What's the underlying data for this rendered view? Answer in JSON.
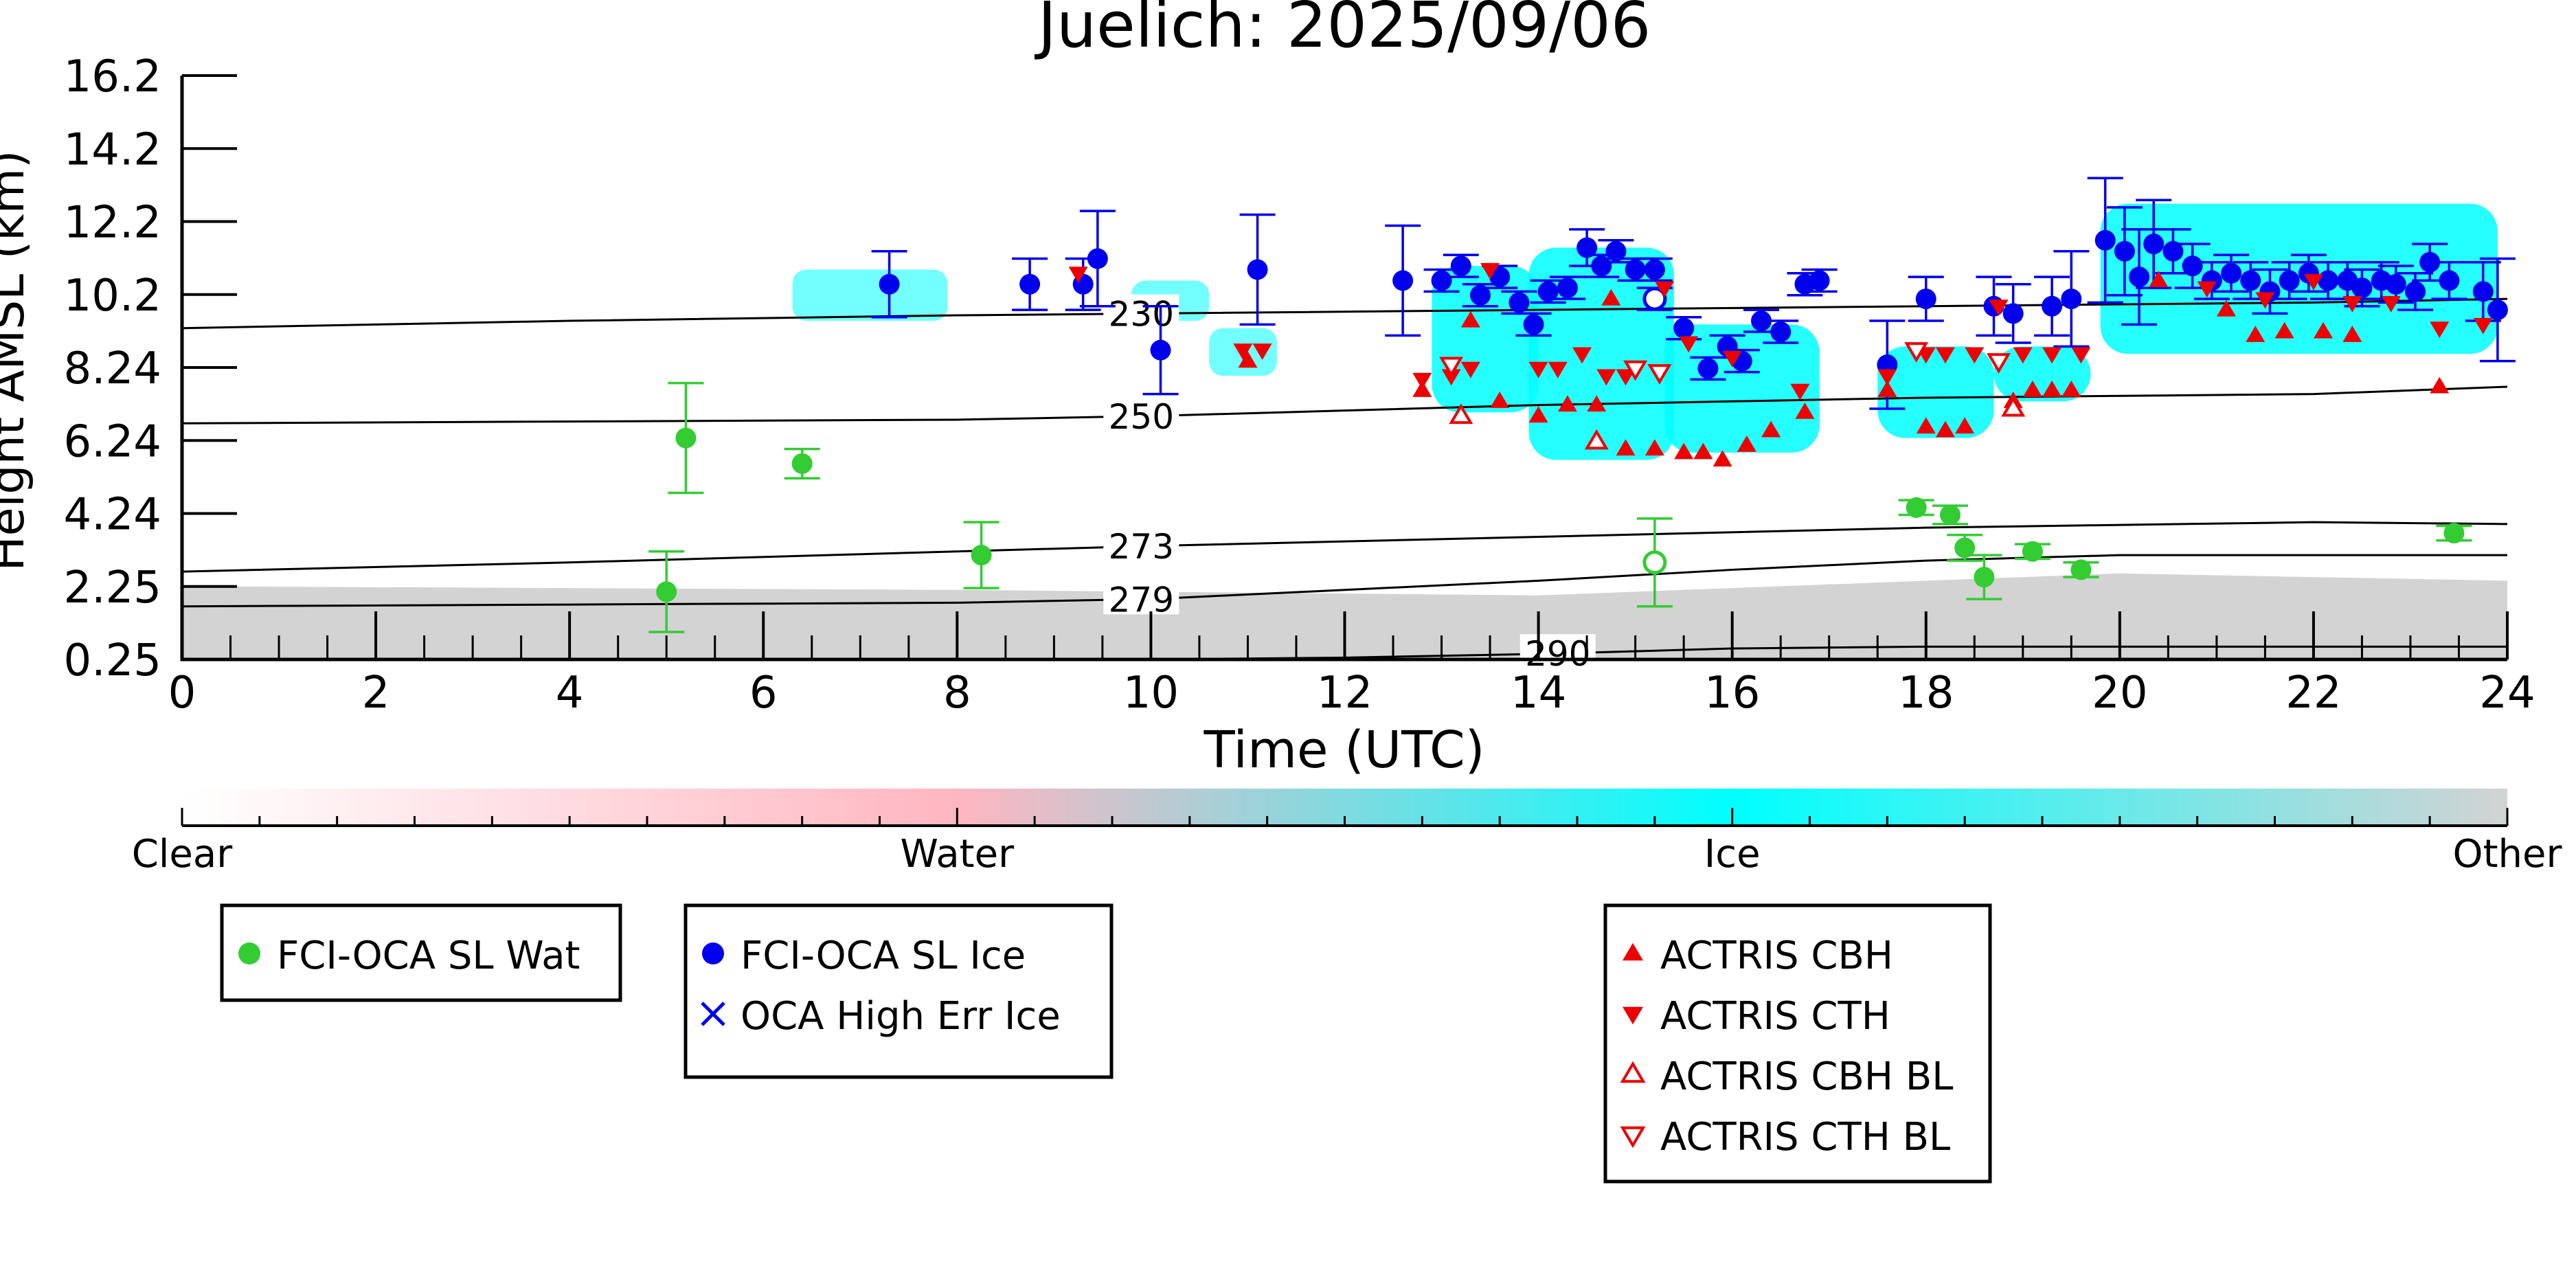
{
  "chart_data": {
    "type": "scatter",
    "title": "Juelich: 2025/09/06",
    "xlabel": "Time (UTC)",
    "ylabel": "Height AMSL (km)",
    "xlim": [
      0,
      24
    ],
    "ylim": [
      0.25,
      16.2
    ],
    "x_ticks": [
      "0",
      "2",
      "4",
      "6",
      "8",
      "10",
      "12",
      "14",
      "16",
      "18",
      "20",
      "22",
      "24"
    ],
    "y_ticks": [
      "0.25",
      "2.25",
      "4.24",
      "6.24",
      "8.24",
      "10.2",
      "12.2",
      "14.2",
      "16.2"
    ],
    "grid": false,
    "colorbar": {
      "labels": [
        "Clear",
        "Water",
        "Ice",
        "Other"
      ],
      "colors": [
        "#ffffff",
        "#ffb6c1",
        "#00ffff",
        "#d3d3d3"
      ]
    },
    "contours": [
      {
        "label": "230",
        "points": [
          [
            0,
            9.3
          ],
          [
            4,
            9.5
          ],
          [
            8,
            9.65
          ],
          [
            10,
            9.7
          ],
          [
            14,
            9.8
          ],
          [
            18,
            9.9
          ],
          [
            22,
            10.0
          ],
          [
            24,
            10.1
          ]
        ]
      },
      {
        "label": "250",
        "points": [
          [
            0,
            6.7
          ],
          [
            4,
            6.75
          ],
          [
            8,
            6.8
          ],
          [
            10,
            6.9
          ],
          [
            14,
            7.2
          ],
          [
            18,
            7.4
          ],
          [
            22,
            7.5
          ],
          [
            24,
            7.7
          ]
        ]
      },
      {
        "label": "273",
        "points": [
          [
            0,
            2.65
          ],
          [
            4,
            2.9
          ],
          [
            8,
            3.2
          ],
          [
            10,
            3.35
          ],
          [
            14,
            3.6
          ],
          [
            18,
            3.85
          ],
          [
            22,
            4.0
          ],
          [
            24,
            3.95
          ]
        ]
      },
      {
        "label": "279",
        "points": [
          [
            0,
            1.7
          ],
          [
            4,
            1.75
          ],
          [
            8,
            1.8
          ],
          [
            10,
            1.9
          ],
          [
            12,
            2.15
          ],
          [
            14,
            2.4
          ],
          [
            16,
            2.7
          ],
          [
            18,
            2.95
          ],
          [
            20,
            3.1
          ],
          [
            22,
            3.1
          ],
          [
            24,
            3.1
          ]
        ]
      },
      {
        "label": "290",
        "points": [
          [
            10,
            0.25
          ],
          [
            12,
            0.3
          ],
          [
            14,
            0.4
          ],
          [
            16,
            0.55
          ],
          [
            18,
            0.6
          ],
          [
            20,
            0.6
          ],
          [
            22,
            0.6
          ],
          [
            24,
            0.6
          ]
        ]
      }
    ],
    "series": [
      {
        "name": "FCI-OCA SL Wat",
        "color": "#33cc33",
        "marker": "circle",
        "points": [
          {
            "x": 5.0,
            "y": 2.1,
            "err": 1.1
          },
          {
            "x": 5.2,
            "y": 6.3,
            "err": 1.5
          },
          {
            "x": 6.4,
            "y": 5.6,
            "err": 0.4
          },
          {
            "x": 8.25,
            "y": 3.1,
            "err": 0.9
          },
          {
            "x": 15.2,
            "y": 2.9,
            "err": 1.2,
            "hollow": true
          },
          {
            "x": 17.9,
            "y": 4.4,
            "err": 0.2
          },
          {
            "x": 18.25,
            "y": 4.2,
            "err": 0.25
          },
          {
            "x": 18.4,
            "y": 3.3,
            "err": 0.35
          },
          {
            "x": 18.6,
            "y": 2.5,
            "err": 0.6
          },
          {
            "x": 19.1,
            "y": 3.2,
            "err": 0.2
          },
          {
            "x": 19.6,
            "y": 2.7,
            "err": 0.2
          },
          {
            "x": 23.45,
            "y": 3.7,
            "err": 0.2
          }
        ]
      },
      {
        "name": "FCI-OCA SL Ice",
        "color": "#0000ee",
        "marker": "circle",
        "points": [
          {
            "x": 7.3,
            "y": 10.5,
            "err": 0.9
          },
          {
            "x": 8.75,
            "y": 10.5,
            "err": 0.7
          },
          {
            "x": 9.3,
            "y": 10.5,
            "err": 0.7
          },
          {
            "x": 9.45,
            "y": 11.2,
            "err": 1.3
          },
          {
            "x": 10.1,
            "y": 8.7,
            "err": 1.2
          },
          {
            "x": 11.1,
            "y": 10.9,
            "err": 1.5
          },
          {
            "x": 12.6,
            "y": 10.6,
            "err": 1.5
          },
          {
            "x": 13.0,
            "y": 10.6,
            "err": 0.3
          },
          {
            "x": 13.2,
            "y": 11.0,
            "err": 0.3
          },
          {
            "x": 13.4,
            "y": 10.2,
            "err": 0.3
          },
          {
            "x": 13.6,
            "y": 10.7,
            "err": 0.3
          },
          {
            "x": 13.8,
            "y": 10.0,
            "err": 0.3
          },
          {
            "x": 13.95,
            "y": 9.4,
            "err": 0.3
          },
          {
            "x": 14.1,
            "y": 10.3,
            "err": 0.3
          },
          {
            "x": 14.3,
            "y": 10.4,
            "err": 0.3
          },
          {
            "x": 14.5,
            "y": 11.5,
            "err": 0.5
          },
          {
            "x": 14.65,
            "y": 11.0,
            "err": 0.3
          },
          {
            "x": 14.8,
            "y": 11.4,
            "err": 0.3
          },
          {
            "x": 15.0,
            "y": 10.9,
            "err": 0.3
          },
          {
            "x": 15.2,
            "y": 10.9,
            "err": 0.3
          },
          {
            "x": 15.2,
            "y": 10.1,
            "err": 0.3,
            "hollow": true
          },
          {
            "x": 15.5,
            "y": 9.3,
            "err": 0.3
          },
          {
            "x": 15.75,
            "y": 8.2,
            "err": 0.3
          },
          {
            "x": 15.95,
            "y": 8.8,
            "err": 0.3
          },
          {
            "x": 16.1,
            "y": 8.4,
            "err": 0.3
          },
          {
            "x": 16.3,
            "y": 9.5,
            "err": 0.3
          },
          {
            "x": 16.5,
            "y": 9.2,
            "err": 0.3
          },
          {
            "x": 16.75,
            "y": 10.5,
            "err": 0.3
          },
          {
            "x": 16.9,
            "y": 10.6,
            "err": 0.3
          },
          {
            "x": 17.6,
            "y": 8.3,
            "err": 1.2
          },
          {
            "x": 18.0,
            "y": 10.1,
            "err": 0.6
          },
          {
            "x": 18.7,
            "y": 9.9,
            "err": 0.8
          },
          {
            "x": 18.9,
            "y": 9.7,
            "err": 0.8
          },
          {
            "x": 19.3,
            "y": 9.9,
            "err": 0.8
          },
          {
            "x": 19.5,
            "y": 10.1,
            "err": 1.3
          },
          {
            "x": 19.85,
            "y": 11.7,
            "err": 1.7
          },
          {
            "x": 20.05,
            "y": 11.4,
            "err": 1.2
          },
          {
            "x": 20.2,
            "y": 10.7,
            "err": 1.3
          },
          {
            "x": 20.35,
            "y": 11.6,
            "err": 1.2
          },
          {
            "x": 20.55,
            "y": 11.4,
            "err": 0.6
          },
          {
            "x": 20.75,
            "y": 11.0,
            "err": 0.6
          },
          {
            "x": 20.95,
            "y": 10.6,
            "err": 0.5
          },
          {
            "x": 21.15,
            "y": 10.8,
            "err": 0.5
          },
          {
            "x": 21.35,
            "y": 10.6,
            "err": 0.5
          },
          {
            "x": 21.55,
            "y": 10.3,
            "err": 0.6
          },
          {
            "x": 21.75,
            "y": 10.6,
            "err": 0.5
          },
          {
            "x": 21.95,
            "y": 10.8,
            "err": 0.5
          },
          {
            "x": 22.15,
            "y": 10.6,
            "err": 0.5
          },
          {
            "x": 22.35,
            "y": 10.6,
            "err": 0.5
          },
          {
            "x": 22.5,
            "y": 10.4,
            "err": 0.5
          },
          {
            "x": 22.7,
            "y": 10.6,
            "err": 0.5
          },
          {
            "x": 22.85,
            "y": 10.5,
            "err": 0.5
          },
          {
            "x": 23.05,
            "y": 10.3,
            "err": 0.5
          },
          {
            "x": 23.2,
            "y": 11.1,
            "err": 0.5
          },
          {
            "x": 23.4,
            "y": 10.6,
            "err": 0.5
          },
          {
            "x": 23.75,
            "y": 10.3,
            "err": 0.8
          },
          {
            "x": 23.9,
            "y": 9.8,
            "err": 1.4
          }
        ]
      },
      {
        "name": "OCA High Err Ice",
        "color": "#0000ee",
        "marker": "x",
        "points": []
      },
      {
        "name": "ACTRIS CBH",
        "color": "#ee0000",
        "marker": "triangle-up",
        "points": [
          {
            "x": 11.0,
            "y": 8.4
          },
          {
            "x": 12.8,
            "y": 7.6
          },
          {
            "x": 13.3,
            "y": 9.5
          },
          {
            "x": 13.6,
            "y": 7.3
          },
          {
            "x": 14.0,
            "y": 6.9
          },
          {
            "x": 14.3,
            "y": 7.2
          },
          {
            "x": 14.6,
            "y": 7.2
          },
          {
            "x": 14.75,
            "y": 10.1
          },
          {
            "x": 14.9,
            "y": 6.0
          },
          {
            "x": 15.2,
            "y": 6.0
          },
          {
            "x": 15.5,
            "y": 5.9
          },
          {
            "x": 15.7,
            "y": 5.9
          },
          {
            "x": 15.9,
            "y": 5.7
          },
          {
            "x": 16.15,
            "y": 6.1
          },
          {
            "x": 16.4,
            "y": 6.5
          },
          {
            "x": 16.75,
            "y": 7.0
          },
          {
            "x": 17.6,
            "y": 7.6
          },
          {
            "x": 18.0,
            "y": 6.6
          },
          {
            "x": 18.2,
            "y": 6.5
          },
          {
            "x": 18.4,
            "y": 6.6
          },
          {
            "x": 18.9,
            "y": 7.3
          },
          {
            "x": 19.1,
            "y": 7.6
          },
          {
            "x": 19.3,
            "y": 7.6
          },
          {
            "x": 19.5,
            "y": 7.6
          },
          {
            "x": 20.4,
            "y": 10.6
          },
          {
            "x": 21.1,
            "y": 9.8
          },
          {
            "x": 21.4,
            "y": 9.1
          },
          {
            "x": 21.7,
            "y": 9.2
          },
          {
            "x": 22.1,
            "y": 9.2
          },
          {
            "x": 22.4,
            "y": 9.1
          },
          {
            "x": 23.3,
            "y": 7.7
          }
        ]
      },
      {
        "name": "ACTRIS CTH",
        "color": "#ee0000",
        "marker": "triangle-down",
        "points": [
          {
            "x": 9.25,
            "y": 10.8
          },
          {
            "x": 10.95,
            "y": 8.7
          },
          {
            "x": 11.15,
            "y": 8.7
          },
          {
            "x": 12.8,
            "y": 7.9
          },
          {
            "x": 13.1,
            "y": 8.0
          },
          {
            "x": 13.3,
            "y": 8.2
          },
          {
            "x": 13.5,
            "y": 10.9
          },
          {
            "x": 14.0,
            "y": 8.2
          },
          {
            "x": 14.2,
            "y": 8.2
          },
          {
            "x": 14.45,
            "y": 8.6
          },
          {
            "x": 14.7,
            "y": 8.0
          },
          {
            "x": 14.9,
            "y": 8.0
          },
          {
            "x": 15.3,
            "y": 10.4
          },
          {
            "x": 15.55,
            "y": 8.9
          },
          {
            "x": 16.0,
            "y": 8.5
          },
          {
            "x": 16.7,
            "y": 7.6
          },
          {
            "x": 17.6,
            "y": 8.0
          },
          {
            "x": 18.0,
            "y": 8.6
          },
          {
            "x": 18.2,
            "y": 8.6
          },
          {
            "x": 18.5,
            "y": 8.6
          },
          {
            "x": 18.75,
            "y": 9.9
          },
          {
            "x": 19.0,
            "y": 8.6
          },
          {
            "x": 19.3,
            "y": 8.6
          },
          {
            "x": 19.6,
            "y": 8.6
          },
          {
            "x": 20.9,
            "y": 10.4
          },
          {
            "x": 21.5,
            "y": 10.1
          },
          {
            "x": 22.0,
            "y": 10.6
          },
          {
            "x": 22.4,
            "y": 10.0
          },
          {
            "x": 22.8,
            "y": 10.0
          },
          {
            "x": 23.3,
            "y": 9.3
          },
          {
            "x": 23.75,
            "y": 9.4
          }
        ]
      },
      {
        "name": "ACTRIS CBH BL",
        "color": "#ee0000",
        "marker": "triangle-up-open",
        "points": [
          {
            "x": 13.2,
            "y": 6.9
          },
          {
            "x": 14.6,
            "y": 6.2
          },
          {
            "x": 18.9,
            "y": 7.1
          }
        ]
      },
      {
        "name": "ACTRIS CTH BL",
        "color": "#ee0000",
        "marker": "triangle-down-open",
        "points": [
          {
            "x": 13.1,
            "y": 8.3
          },
          {
            "x": 15.0,
            "y": 8.2
          },
          {
            "x": 15.25,
            "y": 8.1
          },
          {
            "x": 17.9,
            "y": 8.7
          },
          {
            "x": 18.75,
            "y": 8.4
          }
        ]
      }
    ]
  }
}
